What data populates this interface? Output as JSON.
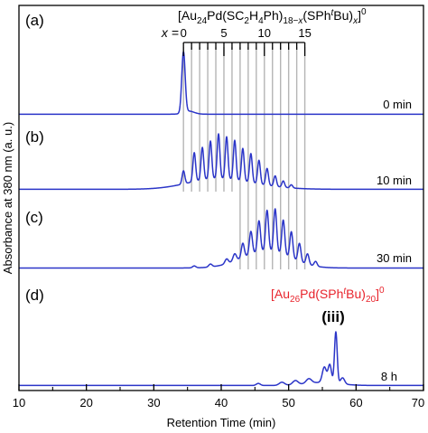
{
  "chart_data": {
    "type": "line",
    "xlabel": "Retention Time (min)",
    "ylabel": "Absorbance at 380 nm (a. u.)",
    "xlim": [
      10,
      70
    ],
    "x_ticks": [
      "10",
      "20",
      "30",
      "40",
      "50",
      "60",
      "70"
    ],
    "color": "#2b35c8",
    "panels": [
      {
        "label": "(a)",
        "time": "0 min",
        "baseline": 0.01,
        "peaks": [
          [
            34.4,
            1.0,
            0.25
          ],
          [
            35.2,
            0.05,
            0.8
          ]
        ]
      },
      {
        "label": "(b)",
        "time": "10 min",
        "baseline": 0.01,
        "peaks": [
          [
            34.4,
            0.25,
            0.2
          ],
          [
            36.0,
            0.55,
            0.2
          ],
          [
            37.2,
            0.62,
            0.2
          ],
          [
            38.4,
            0.72,
            0.2
          ],
          [
            39.6,
            0.85,
            0.2
          ],
          [
            40.8,
            0.8,
            0.2
          ],
          [
            42.0,
            0.75,
            0.2
          ],
          [
            43.2,
            0.62,
            0.2
          ],
          [
            44.4,
            0.55,
            0.2
          ],
          [
            45.6,
            0.45,
            0.2
          ],
          [
            46.8,
            0.32,
            0.2
          ],
          [
            48.0,
            0.2,
            0.2
          ],
          [
            49.2,
            0.12,
            0.2
          ],
          [
            50.4,
            0.06,
            0.2
          ],
          [
            38.5,
            0.12,
            4.0
          ],
          [
            42.0,
            0.1,
            5.0
          ]
        ]
      },
      {
        "label": "(c)",
        "time": "30 min",
        "baseline": 0.01,
        "peaks": [
          [
            36.0,
            0.04,
            0.25
          ],
          [
            38.4,
            0.06,
            0.25
          ],
          [
            40.8,
            0.1,
            0.25
          ],
          [
            42.0,
            0.15,
            0.25
          ],
          [
            43.2,
            0.3,
            0.22
          ],
          [
            44.4,
            0.48,
            0.22
          ],
          [
            45.6,
            0.65,
            0.22
          ],
          [
            46.8,
            0.85,
            0.22
          ],
          [
            48.0,
            0.9,
            0.22
          ],
          [
            49.2,
            0.72,
            0.22
          ],
          [
            50.4,
            0.55,
            0.22
          ],
          [
            51.6,
            0.38,
            0.22
          ],
          [
            52.8,
            0.22,
            0.22
          ],
          [
            54.0,
            0.1,
            0.22
          ],
          [
            47.5,
            0.3,
            3.2
          ],
          [
            44.0,
            0.1,
            3.0
          ]
        ]
      },
      {
        "label": "(d)",
        "time": "8 h",
        "baseline": 0.01,
        "peaks": [
          [
            45.5,
            0.04,
            0.3
          ],
          [
            49.0,
            0.06,
            0.4
          ],
          [
            51.0,
            0.08,
            0.4
          ],
          [
            53.0,
            0.09,
            0.4
          ],
          [
            55.3,
            0.3,
            0.3
          ],
          [
            56.1,
            0.35,
            0.25
          ],
          [
            57.0,
            1.0,
            0.2
          ],
          [
            58.0,
            0.12,
            0.3
          ],
          [
            55.0,
            0.06,
            2.5
          ]
        ]
      }
    ],
    "series_bracket": {
      "formula": "[Au24Pd(SC2H4Ph)18−x(SPhtBu)x]0",
      "x_label": "x =",
      "x_ticks": [
        "0",
        "5",
        "10",
        "15"
      ],
      "x_start": 34.4,
      "x_step": 1.2,
      "x_count": 16
    },
    "product_annotation": {
      "formula": "[Au26Pd(SPhtBu)20]0",
      "label": "(iii)",
      "color": "#e8242c"
    }
  }
}
